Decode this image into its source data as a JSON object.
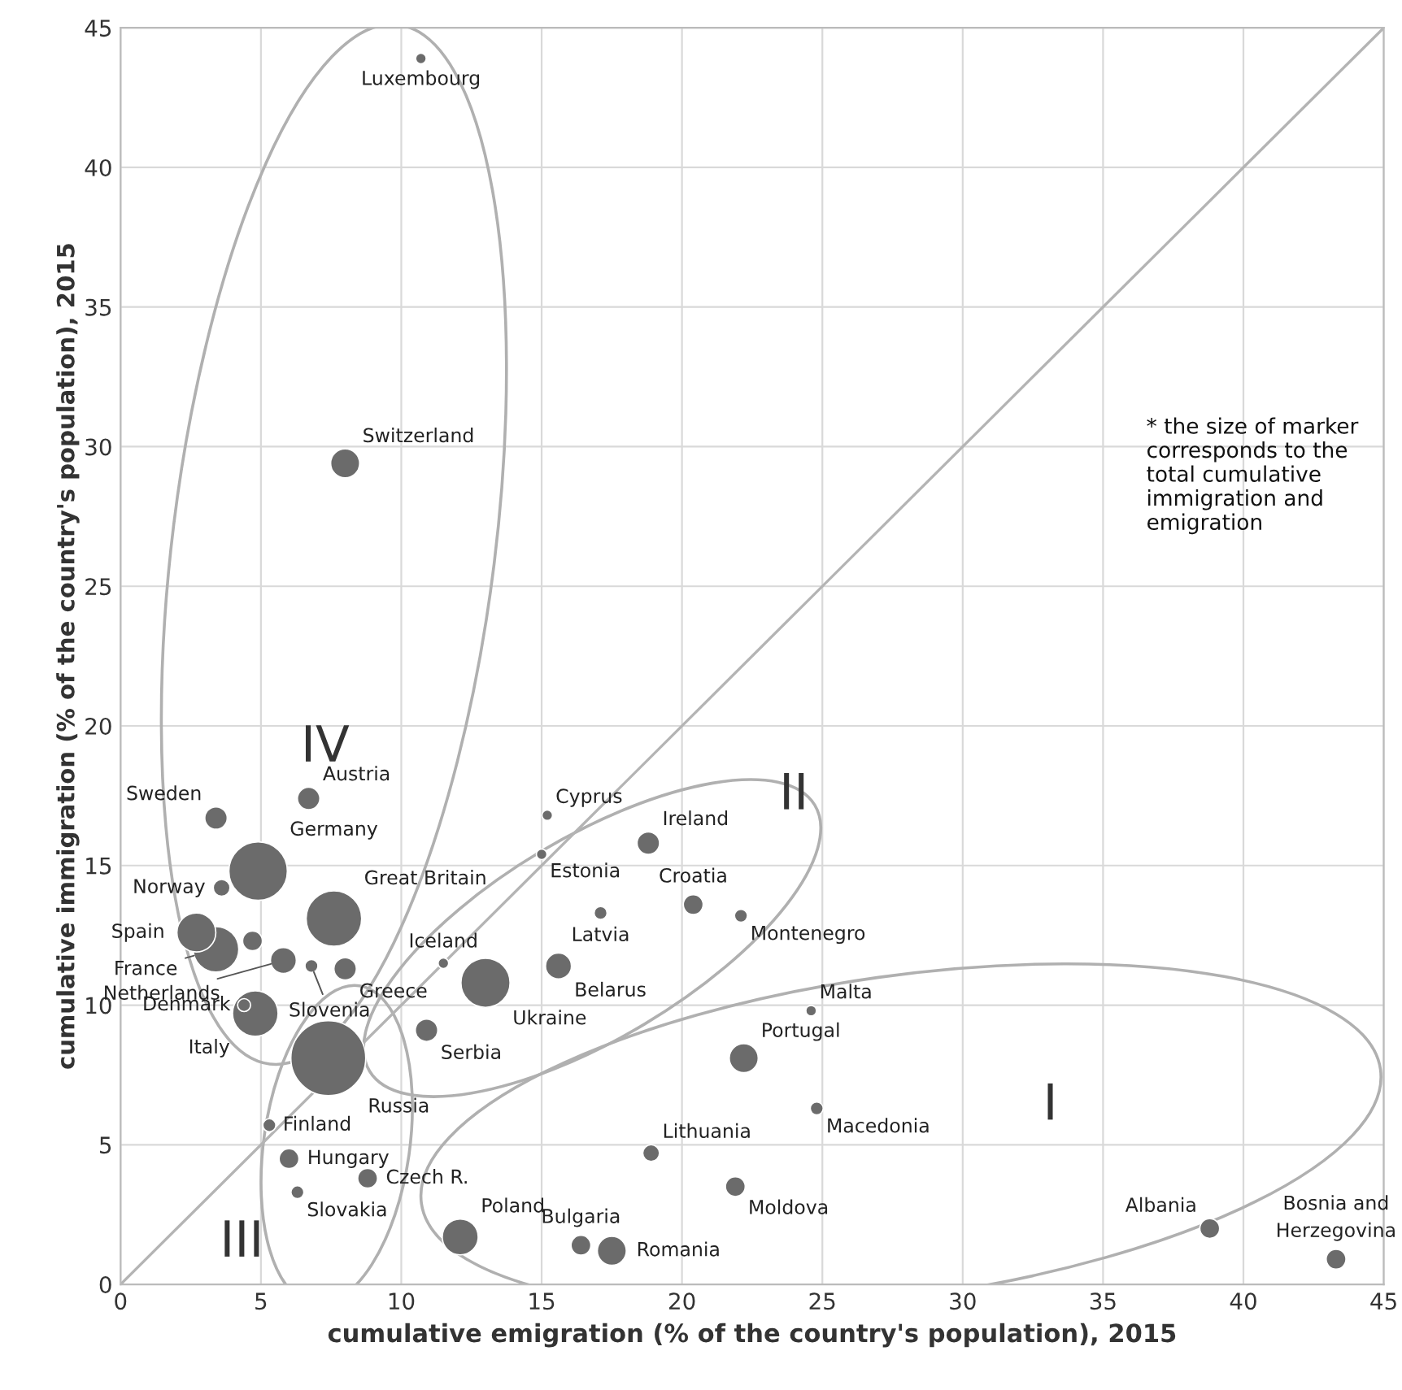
{
  "chart_data": {
    "type": "bubble",
    "xlabel": "cumulative emigration (% of the country's population), 2015",
    "ylabel": "cumulative immigration (% of the country's population), 2015",
    "xlim": [
      0,
      45
    ],
    "ylim": [
      0,
      45
    ],
    "xticks": [
      0,
      5,
      10,
      15,
      20,
      25,
      30,
      35,
      40,
      45
    ],
    "yticks": [
      0,
      5,
      10,
      15,
      20,
      25,
      30,
      35,
      40,
      45
    ],
    "grid": true,
    "marker": "circle",
    "series": [
      {
        "name": "Luxembourg",
        "color": "#6b6b6b",
        "x": [
          10.7
        ],
        "values": [
          43.9
        ],
        "sizes": [
          0.02
        ]
      },
      {
        "name": "Switzerland",
        "color": "#6b6b6b",
        "x": [
          8.0
        ],
        "values": [
          29.4
        ],
        "sizes": [
          0.15
        ]
      },
      {
        "name": "Sweden",
        "color": "#6b6b6b",
        "x": [
          3.4
        ],
        "values": [
          16.7
        ],
        "sizes": [
          0.09
        ]
      },
      {
        "name": "Austria",
        "color": "#6b6b6b",
        "x": [
          6.7
        ],
        "values": [
          17.4
        ],
        "sizes": [
          0.09
        ]
      },
      {
        "name": "Germany",
        "color": "#6b6b6b",
        "x": [
          4.9
        ],
        "values": [
          14.8
        ],
        "sizes": [
          0.61
        ]
      },
      {
        "name": "Norway",
        "color": "#6b6b6b",
        "x": [
          3.6
        ],
        "values": [
          14.2
        ],
        "sizes": [
          0.05
        ]
      },
      {
        "name": "Great Britain",
        "color": "#6b6b6b",
        "x": [
          7.6
        ],
        "values": [
          13.1
        ],
        "sizes": [
          0.55
        ]
      },
      {
        "name": "Spain",
        "color": "#6b6b6b",
        "x": [
          2.7
        ],
        "values": [
          12.6
        ],
        "sizes": [
          0.27
        ]
      },
      {
        "name": "France",
        "color": "#6b6b6b",
        "x": [
          3.4
        ],
        "values": [
          12.0
        ],
        "sizes": [
          0.37
        ]
      },
      {
        "color": "#6b6b6b",
        "x": [
          4.7
        ],
        "values": [
          12.3
        ],
        "sizes": [
          0.07
        ]
      },
      {
        "name": "Netherlands",
        "color": "#6b6b6b",
        "x": [
          5.8
        ],
        "values": [
          11.6
        ],
        "sizes": [
          0.12
        ]
      },
      {
        "name": "Denmark",
        "color": "#6b6b6b",
        "x": [
          4.4
        ],
        "values": [
          10.0
        ],
        "sizes": [
          0.03
        ]
      },
      {
        "name": "Italy",
        "color": "#6b6b6b",
        "x": [
          4.8
        ],
        "values": [
          9.7
        ],
        "sizes": [
          0.37
        ]
      },
      {
        "name": "Slovenia",
        "color": "#6b6b6b",
        "x": [
          6.8
        ],
        "values": [
          11.4
        ],
        "sizes": [
          0.03
        ]
      },
      {
        "name": "Greece",
        "color": "#6b6b6b",
        "x": [
          8.0
        ],
        "values": [
          11.3
        ],
        "sizes": [
          0.09
        ]
      },
      {
        "name": "Russia",
        "color": "#6b6b6b",
        "x": [
          7.4
        ],
        "values": [
          8.1
        ],
        "sizes": [
          1
        ]
      },
      {
        "name": "Finland",
        "color": "#6b6b6b",
        "x": [
          5.3
        ],
        "values": [
          5.7
        ],
        "sizes": [
          0.03
        ]
      },
      {
        "name": "Hungary",
        "color": "#6b6b6b",
        "x": [
          6.0
        ],
        "values": [
          4.5
        ],
        "sizes": [
          0.07
        ]
      },
      {
        "name": "Czech R.",
        "color": "#6b6b6b",
        "x": [
          8.8
        ],
        "values": [
          3.8
        ],
        "sizes": [
          0.07
        ]
      },
      {
        "name": "Slovakia",
        "color": "#6b6b6b",
        "x": [
          6.3
        ],
        "values": [
          3.3
        ],
        "sizes": [
          0.03
        ]
      },
      {
        "name": "Poland",
        "color": "#6b6b6b",
        "x": [
          12.1
        ],
        "values": [
          1.7
        ],
        "sizes": [
          0.23
        ]
      },
      {
        "name": "Iceland",
        "color": "#6b6b6b",
        "x": [
          11.5
        ],
        "values": [
          11.5
        ],
        "sizes": [
          0.02
        ]
      },
      {
        "name": "Ukraine",
        "color": "#6b6b6b",
        "x": [
          13.0
        ],
        "values": [
          10.8
        ],
        "sizes": [
          0.43
        ]
      },
      {
        "name": "Serbia",
        "color": "#6b6b6b",
        "x": [
          10.9
        ],
        "values": [
          9.1
        ],
        "sizes": [
          0.09
        ]
      },
      {
        "name": "Belarus",
        "color": "#6b6b6b",
        "x": [
          15.6
        ],
        "values": [
          11.4
        ],
        "sizes": [
          0.12
        ]
      },
      {
        "name": "Cyprus",
        "color": "#6b6b6b",
        "x": [
          15.2
        ],
        "values": [
          16.8
        ],
        "sizes": [
          0.02
        ]
      },
      {
        "name": "Estonia",
        "color": "#6b6b6b",
        "x": [
          15.0
        ],
        "values": [
          15.4
        ],
        "sizes": [
          0.02
        ]
      },
      {
        "name": "Ireland",
        "color": "#6b6b6b",
        "x": [
          18.8
        ],
        "values": [
          15.8
        ],
        "sizes": [
          0.09
        ]
      },
      {
        "name": "Latvia",
        "color": "#6b6b6b",
        "x": [
          17.1
        ],
        "values": [
          13.3
        ],
        "sizes": [
          0.03
        ]
      },
      {
        "name": "Croatia",
        "color": "#6b6b6b",
        "x": [
          20.4
        ],
        "values": [
          13.6
        ],
        "sizes": [
          0.07
        ]
      },
      {
        "name": "Montenegro",
        "color": "#6b6b6b",
        "x": [
          22.1
        ],
        "values": [
          13.2
        ],
        "sizes": [
          0.03
        ]
      },
      {
        "name": "Malta",
        "color": "#6b6b6b",
        "x": [
          24.6
        ],
        "values": [
          9.8
        ],
        "sizes": [
          0.02
        ]
      },
      {
        "name": "Portugal",
        "color": "#6b6b6b",
        "x": [
          22.2
        ],
        "values": [
          8.1
        ],
        "sizes": [
          0.15
        ]
      },
      {
        "name": "Macedonia",
        "color": "#6b6b6b",
        "x": [
          24.8
        ],
        "values": [
          6.3
        ],
        "sizes": [
          0.03
        ]
      },
      {
        "name": "Lithuania",
        "color": "#6b6b6b",
        "x": [
          18.9
        ],
        "values": [
          4.7
        ],
        "sizes": [
          0.05
        ]
      },
      {
        "name": "Moldova",
        "color": "#6b6b6b",
        "x": [
          21.9
        ],
        "values": [
          3.5
        ],
        "sizes": [
          0.07
        ]
      },
      {
        "name": "Bulgaria",
        "color": "#6b6b6b",
        "x": [
          16.4
        ],
        "values": [
          1.4
        ],
        "sizes": [
          0.07
        ]
      },
      {
        "name": "Romania",
        "color": "#6b6b6b",
        "x": [
          17.5
        ],
        "values": [
          1.2
        ],
        "sizes": [
          0.15
        ]
      },
      {
        "name": "Albania",
        "color": "#6b6b6b",
        "x": [
          38.8
        ],
        "values": [
          2.0
        ],
        "sizes": [
          0.07
        ]
      },
      {
        "name": "Bosnia and\nHerzegovina",
        "color": "#6b6b6b",
        "x": [
          43.3
        ],
        "values": [
          0.9
        ],
        "sizes": [
          0.07
        ]
      },
      {
        "type": "line",
        "color": "#b4b4b4",
        "x": [
          0,
          45
        ],
        "values": [
          0,
          45
        ],
        "marker": "none",
        "line_style": "solid"
      }
    ],
    "annotations": [
      "IV",
      "II",
      "III",
      "I",
      "* the size of marker corresponds to the total cumulative immigration and emigration"
    ]
  }
}
